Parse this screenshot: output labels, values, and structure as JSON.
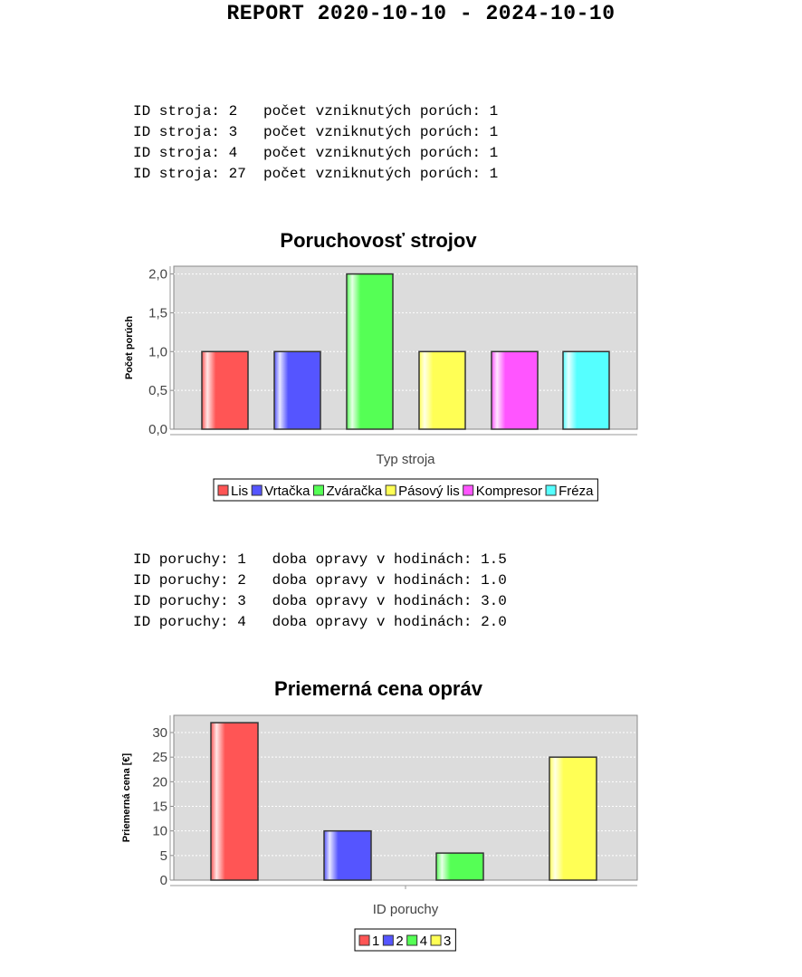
{
  "report_title": "REPORT 2020-10-10 - 2024-10-10",
  "machine_failures_list": [
    {
      "id_label": "ID stroja:",
      "id": "2",
      "count_label": "počet vzniknutých porúch:",
      "count": "1"
    },
    {
      "id_label": "ID stroja:",
      "id": "3",
      "count_label": "počet vzniknutých porúch:",
      "count": "1"
    },
    {
      "id_label": "ID stroja:",
      "id": "4",
      "count_label": "počet vzniknutých porúch:",
      "count": "1"
    },
    {
      "id_label": "ID stroja:",
      "id": "27",
      "count_label": "počet vzniknutých porúch:",
      "count": "1"
    }
  ],
  "repair_time_list": [
    {
      "id_label": "ID poruchy:",
      "id": "1",
      "time_label": "doba opravy v hodinách:",
      "time": "1.5"
    },
    {
      "id_label": "ID poruchy:",
      "id": "2",
      "time_label": "doba opravy v hodinách:",
      "time": "1.0"
    },
    {
      "id_label": "ID poruchy:",
      "id": "3",
      "time_label": "doba opravy v hodinách:",
      "time": "3.0"
    },
    {
      "id_label": "ID poruchy:",
      "id": "4",
      "time_label": "doba opravy v hodinách:",
      "time": "2.0"
    }
  ],
  "chart_data": [
    {
      "type": "bar",
      "title": "Poruchovosť strojov",
      "xlabel": "Typ stroja",
      "ylabel": "Počet porúch",
      "ylim": [
        0,
        2.1
      ],
      "yticks": [
        0,
        0.5,
        1,
        1.5,
        2
      ],
      "ytick_labels": [
        "0,0",
        "0,5",
        "1,0",
        "1,5",
        "2,0"
      ],
      "categories": [
        "Lis",
        "Vrtačka",
        "Zváračka",
        "Pásový lis",
        "Kompresor",
        "Fréza"
      ],
      "values": [
        1,
        1,
        2,
        1,
        1,
        1
      ],
      "colors": [
        "#ff5555",
        "#5555ff",
        "#55ff55",
        "#ffff55",
        "#ff55ff",
        "#55ffff"
      ],
      "legend": [
        "Lis",
        "Vrtačka",
        "Zváračka",
        "Pásový lis",
        "Kompresor",
        "Fréza"
      ],
      "legend_position": "bottom",
      "grid": true,
      "plot_background": "#dcdcdc"
    },
    {
      "type": "bar",
      "title": "Priemerná cena opráv",
      "xlabel": "ID poruchy",
      "ylabel": "Priemerná cena [€]",
      "ylim": [
        0,
        33.5
      ],
      "yticks": [
        0,
        5,
        10,
        15,
        20,
        25,
        30
      ],
      "ytick_labels": [
        "0",
        "5",
        "10",
        "15",
        "20",
        "25",
        "30"
      ],
      "categories": [
        "1",
        "2",
        "4",
        "3"
      ],
      "values": [
        32,
        10,
        5.5,
        25
      ],
      "colors": [
        "#ff5555",
        "#5555ff",
        "#55ff55",
        "#ffff55"
      ],
      "legend": [
        "1",
        "2",
        "4",
        "3"
      ],
      "legend_position": "bottom",
      "grid": true,
      "plot_background": "#dcdcdc"
    }
  ]
}
